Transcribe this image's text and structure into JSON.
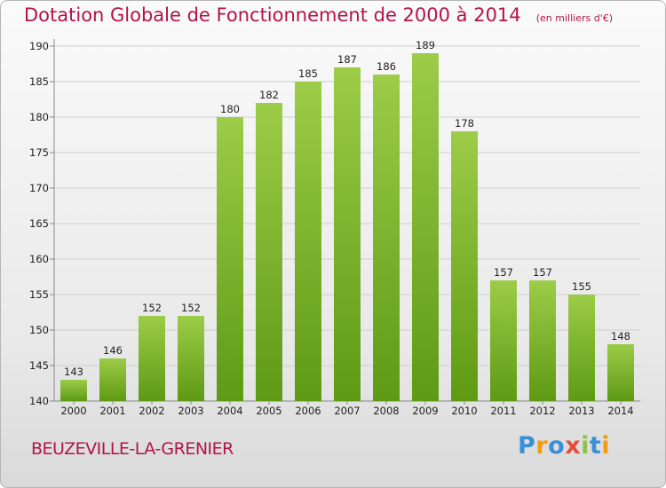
{
  "chart_data": {
    "type": "bar",
    "title": "Dotation Globale de Fonctionnement de 2000 à 2014",
    "unit_note": "(en milliers d'€)",
    "categories": [
      "2000",
      "2001",
      "2002",
      "2003",
      "2004",
      "2005",
      "2006",
      "2007",
      "2008",
      "2009",
      "2010",
      "2011",
      "2012",
      "2013",
      "2014"
    ],
    "values": [
      143,
      146,
      152,
      152,
      180,
      182,
      185,
      187,
      186,
      189,
      178,
      157,
      157,
      155,
      148
    ],
    "ylim": [
      140,
      190
    ],
    "yticks": [
      "140",
      "145",
      "150",
      "155",
      "160",
      "165",
      "170",
      "175",
      "180",
      "185",
      "190"
    ],
    "grid": true,
    "bar_color_top": "#9ccc48",
    "bar_color_bottom": "#5e9a14"
  },
  "commune": "BEUZEVILLE-LA-GRENIER",
  "logo": {
    "letters": [
      "P",
      "r",
      "o",
      "x",
      "i",
      "t",
      "i"
    ],
    "colors": [
      "#3a8fd8",
      "#f39c12",
      "#3a8fd8",
      "#e74c3c",
      "#8bc34a",
      "#3a8fd8",
      "#f39c12"
    ]
  }
}
